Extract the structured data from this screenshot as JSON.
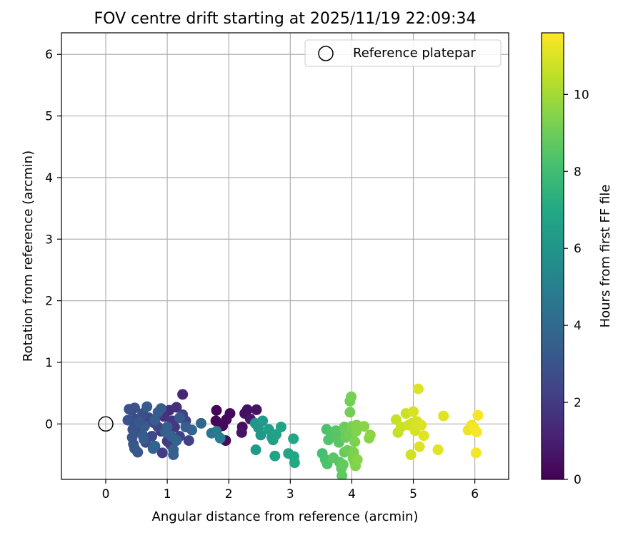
{
  "chart_data": {
    "type": "scatter",
    "title": "FOV centre drift starting at 2025/11/19 22:09:34",
    "xlabel": "Angular distance from reference (arcmin)",
    "ylabel": "Rotation from reference (arcmin)",
    "xlim": [
      -0.72,
      6.55
    ],
    "ylim": [
      -0.9,
      6.35
    ],
    "xticks": [
      0,
      1,
      2,
      3,
      4,
      5,
      6
    ],
    "yticks": [
      0,
      1,
      2,
      3,
      4,
      5,
      6
    ],
    "grid": true,
    "legend": {
      "position": "upper-right",
      "entries": [
        {
          "label": "Reference platepar",
          "marker": "open-circle"
        }
      ]
    },
    "reference_point": {
      "x": 0,
      "y": 0
    },
    "colorbar": {
      "label": "Hours from first FF file",
      "colormap": "viridis",
      "range": [
        0,
        11.6
      ],
      "ticks": [
        0,
        2,
        4,
        6,
        8,
        10
      ]
    },
    "points": [
      {
        "x": 1.8,
        "y": 0.22,
        "h": 0.1
      },
      {
        "x": 1.79,
        "y": 0.05,
        "h": 0.2
      },
      {
        "x": 1.9,
        "y": -0.03,
        "h": 0.2
      },
      {
        "x": 1.96,
        "y": 0.07,
        "h": 0.3
      },
      {
        "x": 2.02,
        "y": 0.17,
        "h": 0.3
      },
      {
        "x": 1.95,
        "y": -0.27,
        "h": 0.4
      },
      {
        "x": 2.22,
        "y": -0.05,
        "h": 0.4
      },
      {
        "x": 2.26,
        "y": 0.17,
        "h": 0.5
      },
      {
        "x": 2.3,
        "y": 0.23,
        "h": 0.5
      },
      {
        "x": 2.21,
        "y": -0.14,
        "h": 0.6
      },
      {
        "x": 2.45,
        "y": 0.23,
        "h": 0.6
      },
      {
        "x": 2.35,
        "y": 0.08,
        "h": 0.7
      },
      {
        "x": 1.25,
        "y": 0.48,
        "h": 1.3
      },
      {
        "x": 1.03,
        "y": 0.22,
        "h": 1.5
      },
      {
        "x": 1.15,
        "y": 0.27,
        "h": 1.6
      },
      {
        "x": 0.95,
        "y": 0.12,
        "h": 1.7
      },
      {
        "x": 1.08,
        "y": 0.05,
        "h": 1.8
      },
      {
        "x": 1.12,
        "y": -0.05,
        "h": 1.9
      },
      {
        "x": 0.9,
        "y": -0.12,
        "h": 2.0
      },
      {
        "x": 1.0,
        "y": -0.28,
        "h": 2.0
      },
      {
        "x": 0.92,
        "y": -0.47,
        "h": 2.1
      },
      {
        "x": 1.05,
        "y": -0.33,
        "h": 2.1
      },
      {
        "x": 1.2,
        "y": -0.2,
        "h": 2.2
      },
      {
        "x": 1.35,
        "y": -0.27,
        "h": 2.2
      },
      {
        "x": 1.3,
        "y": 0.05,
        "h": 2.3
      },
      {
        "x": 1.25,
        "y": 0.15,
        "h": 2.3
      },
      {
        "x": 0.85,
        "y": -0.05,
        "h": 2.4
      },
      {
        "x": 0.78,
        "y": 0.02,
        "h": 2.4
      },
      {
        "x": 0.7,
        "y": 0.1,
        "h": 2.5
      },
      {
        "x": 0.75,
        "y": -0.2,
        "h": 2.5
      },
      {
        "x": 0.65,
        "y": -0.3,
        "h": 2.6
      },
      {
        "x": 0.55,
        "y": -0.12,
        "h": 2.6
      },
      {
        "x": 0.48,
        "y": 0.08,
        "h": 2.7
      },
      {
        "x": 0.5,
        "y": -0.02,
        "h": 2.7
      },
      {
        "x": 0.6,
        "y": 0.17,
        "h": 2.8
      },
      {
        "x": 0.42,
        "y": 0.22,
        "h": 2.8
      },
      {
        "x": 0.47,
        "y": 0.26,
        "h": 2.9
      },
      {
        "x": 0.38,
        "y": 0.24,
        "h": 2.9
      },
      {
        "x": 0.36,
        "y": 0.06,
        "h": 3.0
      },
      {
        "x": 0.44,
        "y": -0.09,
        "h": 3.0
      },
      {
        "x": 0.43,
        "y": -0.22,
        "h": 3.1
      },
      {
        "x": 0.45,
        "y": -0.33,
        "h": 3.1
      },
      {
        "x": 0.47,
        "y": -0.4,
        "h": 3.2
      },
      {
        "x": 0.52,
        "y": -0.46,
        "h": 3.2
      },
      {
        "x": 0.6,
        "y": -0.18,
        "h": 3.3
      },
      {
        "x": 0.63,
        "y": -0.04,
        "h": 3.3
      },
      {
        "x": 0.67,
        "y": 0.28,
        "h": 3.3
      },
      {
        "x": 0.8,
        "y": 0.06,
        "h": 3.4
      },
      {
        "x": 0.85,
        "y": 0.19,
        "h": 3.4
      },
      {
        "x": 0.9,
        "y": 0.25,
        "h": 3.4
      },
      {
        "x": 0.97,
        "y": -0.13,
        "h": 3.5
      },
      {
        "x": 1.0,
        "y": -0.05,
        "h": 3.5
      },
      {
        "x": 1.07,
        "y": -0.2,
        "h": 3.6
      },
      {
        "x": 1.1,
        "y": -0.42,
        "h": 3.6
      },
      {
        "x": 1.1,
        "y": -0.5,
        "h": 3.6
      },
      {
        "x": 1.15,
        "y": -0.27,
        "h": 3.7
      },
      {
        "x": 0.8,
        "y": -0.36,
        "h": 3.7
      },
      {
        "x": 0.77,
        "y": -0.4,
        "h": 3.7
      },
      {
        "x": 1.4,
        "y": -0.1,
        "h": 3.7
      },
      {
        "x": 1.55,
        "y": 0.01,
        "h": 3.8
      },
      {
        "x": 1.3,
        "y": -0.05,
        "h": 3.5
      },
      {
        "x": 1.2,
        "y": 0.1,
        "h": 3.3
      },
      {
        "x": 0.55,
        "y": 0.03,
        "h": 3.2
      },
      {
        "x": 0.62,
        "y": -0.25,
        "h": 3.4
      },
      {
        "x": 1.72,
        "y": -0.15,
        "h": 4.5
      },
      {
        "x": 1.8,
        "y": -0.12,
        "h": 4.7
      },
      {
        "x": 1.86,
        "y": -0.23,
        "h": 4.9
      },
      {
        "x": 2.43,
        "y": 0.01,
        "h": 6.0
      },
      {
        "x": 2.48,
        "y": -0.06,
        "h": 6.1
      },
      {
        "x": 2.52,
        "y": -0.18,
        "h": 6.2
      },
      {
        "x": 2.55,
        "y": 0.05,
        "h": 6.3
      },
      {
        "x": 2.44,
        "y": -0.42,
        "h": 6.3
      },
      {
        "x": 2.65,
        "y": -0.09,
        "h": 6.4
      },
      {
        "x": 2.7,
        "y": -0.22,
        "h": 6.5
      },
      {
        "x": 2.72,
        "y": -0.26,
        "h": 6.5
      },
      {
        "x": 2.77,
        "y": -0.17,
        "h": 6.6
      },
      {
        "x": 2.85,
        "y": -0.05,
        "h": 6.7
      },
      {
        "x": 2.75,
        "y": -0.52,
        "h": 6.7
      },
      {
        "x": 2.97,
        "y": -0.48,
        "h": 6.8
      },
      {
        "x": 3.05,
        "y": -0.24,
        "h": 6.9
      },
      {
        "x": 3.06,
        "y": -0.53,
        "h": 6.9
      },
      {
        "x": 3.07,
        "y": -0.63,
        "h": 7.0
      },
      {
        "x": 3.52,
        "y": -0.48,
        "h": 8.1
      },
      {
        "x": 3.57,
        "y": -0.58,
        "h": 8.2
      },
      {
        "x": 3.6,
        "y": -0.65,
        "h": 8.3
      },
      {
        "x": 3.59,
        "y": -0.09,
        "h": 8.3
      },
      {
        "x": 3.62,
        "y": -0.26,
        "h": 8.4
      },
      {
        "x": 3.66,
        "y": -0.15,
        "h": 8.4
      },
      {
        "x": 3.74,
        "y": -0.11,
        "h": 8.5
      },
      {
        "x": 3.77,
        "y": -0.23,
        "h": 8.5
      },
      {
        "x": 3.79,
        "y": -0.3,
        "h": 8.6
      },
      {
        "x": 3.8,
        "y": -0.62,
        "h": 8.6
      },
      {
        "x": 3.83,
        "y": -0.72,
        "h": 8.7
      },
      {
        "x": 3.84,
        "y": -0.84,
        "h": 8.7
      },
      {
        "x": 3.86,
        "y": -0.66,
        "h": 8.8
      },
      {
        "x": 3.88,
        "y": -0.46,
        "h": 8.8
      },
      {
        "x": 3.88,
        "y": -0.05,
        "h": 8.9
      },
      {
        "x": 3.89,
        "y": -0.11,
        "h": 8.9
      },
      {
        "x": 3.9,
        "y": -0.22,
        "h": 9.0
      },
      {
        "x": 3.91,
        "y": -0.12,
        "h": 9.0
      },
      {
        "x": 3.93,
        "y": -0.43,
        "h": 9.0
      },
      {
        "x": 3.95,
        "y": -0.17,
        "h": 9.1
      },
      {
        "x": 3.97,
        "y": 0.19,
        "h": 9.1
      },
      {
        "x": 3.97,
        "y": 0.37,
        "h": 9.1
      },
      {
        "x": 3.99,
        "y": 0.44,
        "h": 9.2
      },
      {
        "x": 4.0,
        "y": -0.04,
        "h": 9.2
      },
      {
        "x": 4.02,
        "y": -0.56,
        "h": 9.2
      },
      {
        "x": 4.03,
        "y": -0.46,
        "h": 9.3
      },
      {
        "x": 4.04,
        "y": -0.6,
        "h": 9.3
      },
      {
        "x": 4.05,
        "y": -0.29,
        "h": 9.3
      },
      {
        "x": 4.06,
        "y": -0.68,
        "h": 9.4
      },
      {
        "x": 4.07,
        "y": -0.12,
        "h": 9.4
      },
      {
        "x": 4.08,
        "y": -0.02,
        "h": 9.4
      },
      {
        "x": 4.09,
        "y": -0.58,
        "h": 9.5
      },
      {
        "x": 4.2,
        "y": -0.04,
        "h": 9.5
      },
      {
        "x": 4.28,
        "y": -0.23,
        "h": 9.5
      },
      {
        "x": 4.3,
        "y": -0.18,
        "h": 9.6
      },
      {
        "x": 3.7,
        "y": -0.55,
        "h": 8.6
      },
      {
        "x": 4.72,
        "y": 0.07,
        "h": 10.6
      },
      {
        "x": 4.75,
        "y": -0.14,
        "h": 10.6
      },
      {
        "x": 4.8,
        "y": -0.05,
        "h": 10.7
      },
      {
        "x": 4.88,
        "y": 0.17,
        "h": 10.7
      },
      {
        "x": 4.92,
        "y": -0.02,
        "h": 10.8
      },
      {
        "x": 4.96,
        "y": -0.5,
        "h": 10.8
      },
      {
        "x": 4.98,
        "y": 0.01,
        "h": 10.8
      },
      {
        "x": 5.0,
        "y": 0.2,
        "h": 10.9
      },
      {
        "x": 5.03,
        "y": -0.11,
        "h": 10.9
      },
      {
        "x": 5.06,
        "y": 0.04,
        "h": 10.9
      },
      {
        "x": 5.08,
        "y": 0.57,
        "h": 11.0
      },
      {
        "x": 5.1,
        "y": -0.37,
        "h": 11.0
      },
      {
        "x": 5.13,
        "y": -0.02,
        "h": 11.0
      },
      {
        "x": 5.17,
        "y": -0.19,
        "h": 11.1
      },
      {
        "x": 5.4,
        "y": -0.42,
        "h": 11.1
      },
      {
        "x": 5.49,
        "y": 0.13,
        "h": 11.1
      },
      {
        "x": 5.89,
        "y": -0.1,
        "h": 11.3
      },
      {
        "x": 5.95,
        "y": -0.02,
        "h": 11.3
      },
      {
        "x": 5.98,
        "y": -0.06,
        "h": 11.4
      },
      {
        "x": 6.02,
        "y": -0.47,
        "h": 11.4
      },
      {
        "x": 6.03,
        "y": -0.13,
        "h": 11.5
      },
      {
        "x": 6.05,
        "y": 0.14,
        "h": 11.5
      }
    ]
  }
}
